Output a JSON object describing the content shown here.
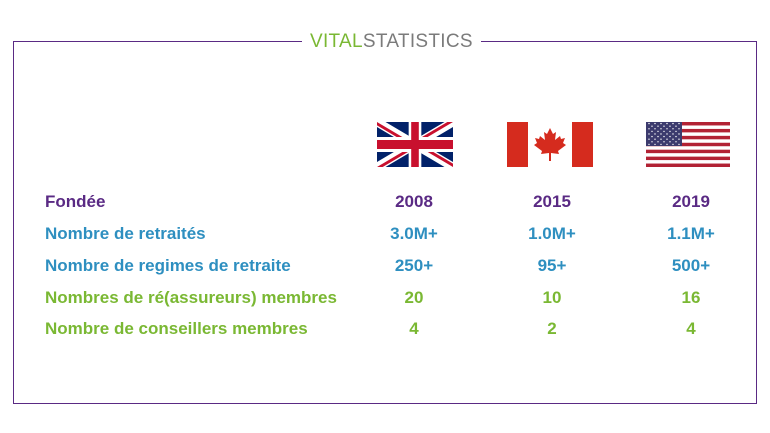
{
  "logo": {
    "part1": "VITAL",
    "part2": "STATISTICS"
  },
  "colors": {
    "purple": "#5a2a84",
    "blue": "#2e8fc0",
    "green": "#7ab833",
    "gray": "#7b7b7b"
  },
  "flags": [
    "uk-flag-icon",
    "canada-flag-icon",
    "usa-flag-icon"
  ],
  "rows": [
    {
      "label": "Fondée",
      "values": [
        "2008",
        "2015",
        "2019"
      ],
      "color": "#5a2a84"
    },
    {
      "label": "Nombre de retraités",
      "values": [
        "3.0M+",
        "1.0M+",
        "1.1M+"
      ],
      "color": "#2e8fc0"
    },
    {
      "label": "Nombre de regimes de retraite",
      "values": [
        "250+",
        "95+",
        "500+"
      ],
      "color": "#2e8fc0"
    },
    {
      "label": "Nombres de ré(assureurs) membres",
      "values": [
        "20",
        "10",
        "16"
      ],
      "color": "#7ab833"
    },
    {
      "label": "Nombre de conseillers membres",
      "values": [
        "4",
        "2",
        "4"
      ],
      "color": "#7ab833"
    }
  ]
}
